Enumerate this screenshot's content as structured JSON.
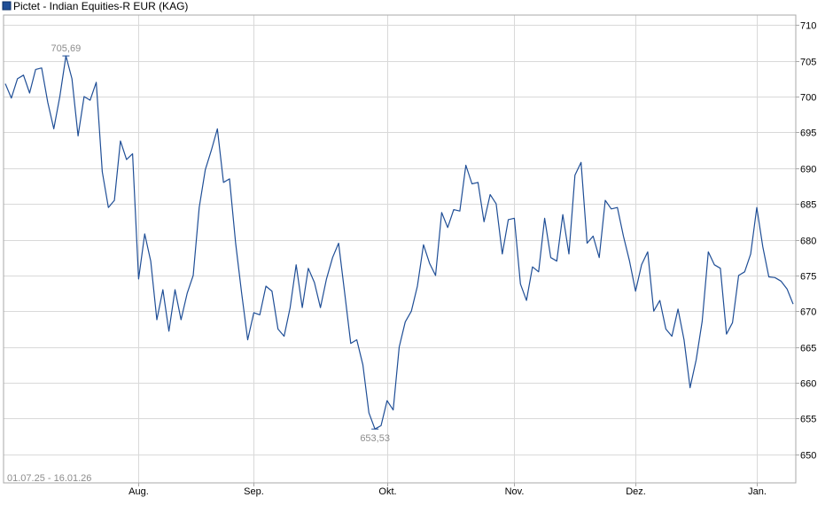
{
  "chart_data": {
    "type": "line",
    "series": [
      {
        "name": "Pictet - Indian Equities-R EUR (KAG)",
        "color": "#1f4e96",
        "values": [
          701.8,
          699.8,
          702.5,
          703.0,
          700.5,
          703.8,
          704.0,
          699.2,
          695.5,
          700.0,
          705.69,
          702.5,
          694.5,
          700.0,
          699.5,
          702.0,
          689.5,
          684.5,
          685.5,
          693.8,
          691.2,
          692.0,
          674.5,
          680.8,
          677.0,
          668.8,
          673.0,
          667.2,
          673.0,
          668.8,
          672.5,
          675.0,
          684.5,
          689.8,
          692.5,
          695.5,
          688.0,
          688.5,
          679.5,
          672.5,
          666.0,
          669.8,
          669.5,
          673.5,
          672.8,
          667.5,
          666.5,
          670.5,
          676.5,
          670.5,
          676.0,
          674.0,
          670.5,
          674.5,
          677.5,
          679.5,
          672.5,
          665.5,
          666.0,
          662.5,
          655.8,
          653.53,
          654.0,
          657.5,
          656.2,
          665.0,
          668.5,
          670.0,
          673.5,
          679.3,
          676.7,
          675.0,
          683.8,
          681.7,
          684.2,
          684.0,
          690.4,
          687.8,
          688.0,
          682.5,
          686.3,
          685.0,
          678.0,
          682.8,
          683.0,
          673.8,
          671.5,
          676.2,
          675.5,
          683.0,
          677.5,
          677.0,
          683.5,
          678.0,
          689.0,
          690.8,
          679.5,
          680.5,
          677.5,
          685.5,
          684.3,
          684.5,
          680.5,
          677.0,
          672.8,
          676.5,
          678.3,
          670.0,
          671.5,
          667.5,
          666.5,
          670.3,
          666.0,
          659.3,
          663.2,
          668.6,
          678.3,
          676.5,
          676.0,
          666.8,
          668.4,
          675.0,
          675.5,
          678.0,
          684.5,
          679.0,
          674.8,
          674.7,
          674.2,
          673.1,
          671.0
        ]
      }
    ],
    "x_start": "01.07.25",
    "x_end": "16.01.26",
    "x_tick_labels": [
      "Aug.",
      "Sep.",
      "Okt.",
      "Nov.",
      "Dez.",
      "Jan."
    ],
    "x_tick_indices": [
      22,
      41,
      63,
      84,
      104,
      124
    ],
    "y_ticks": [
      650,
      655,
      660,
      665,
      670,
      675,
      680,
      685,
      690,
      695,
      700,
      705,
      710
    ],
    "ylim": [
      646,
      711.4
    ],
    "range_label": "01.07.25 - 16.01.26",
    "annotations": [
      {
        "label": "705,69",
        "index": 10,
        "value": 705.69,
        "position": "above"
      },
      {
        "label": "653,53",
        "index": 61,
        "value": 653.53,
        "position": "below"
      }
    ],
    "grid": true,
    "legend": "top-left",
    "title": "",
    "xlabel": "",
    "ylabel": ""
  }
}
